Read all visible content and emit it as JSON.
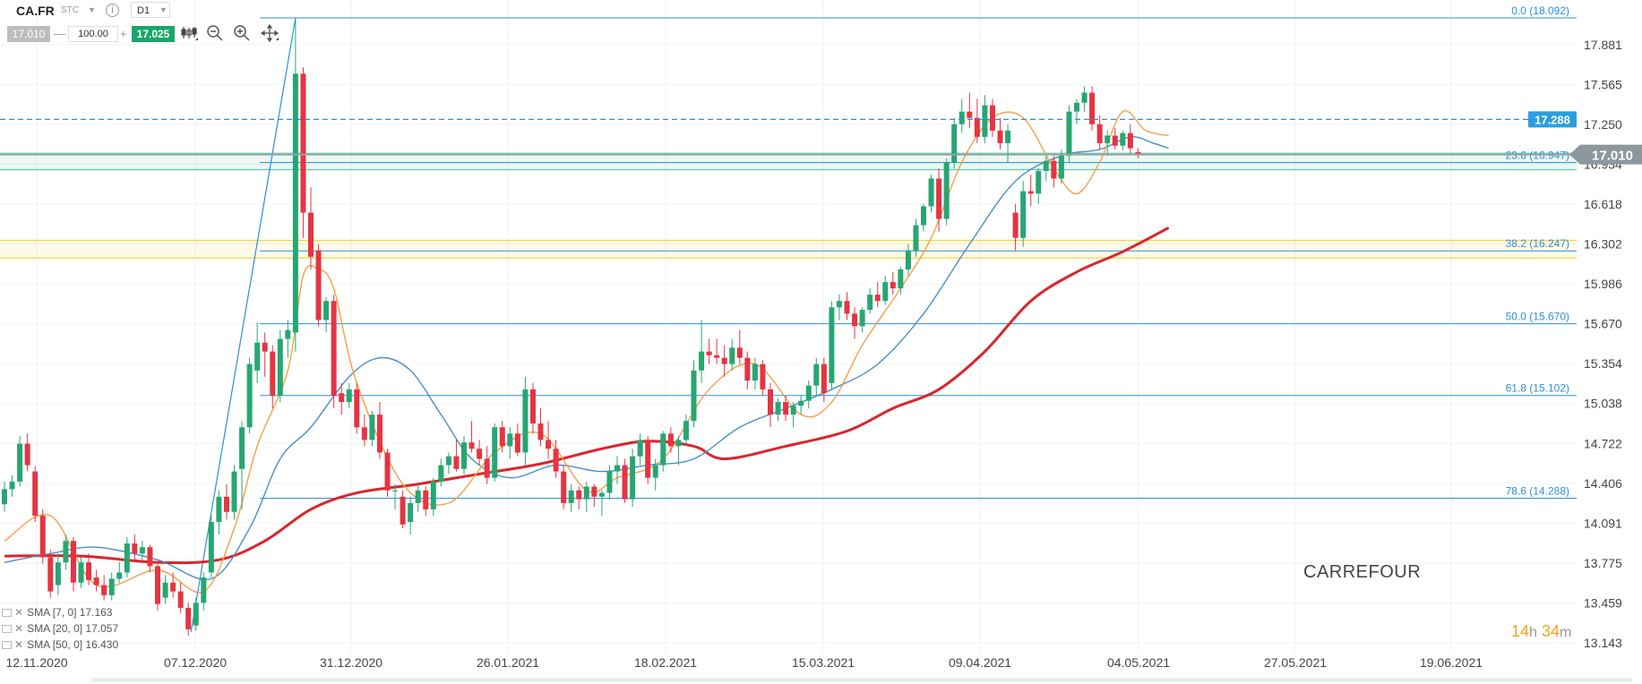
{
  "toolbar": {
    "symbol": "CA.FR",
    "market": "STC",
    "info_glyph": "i",
    "timeframe": "D1",
    "bid": "17.010",
    "minus": "—",
    "volume": "100.00",
    "plus": "+",
    "ask": "17.025",
    "icons": [
      "candlestick-type-icon",
      "zoom-out-icon",
      "zoom-in-icon",
      "crosshair-icon"
    ]
  },
  "indicators": [
    {
      "label": "SMA [7, 0] 17.163",
      "color": "#f5a04a"
    },
    {
      "label": "SMA [20, 0] 17.057",
      "color": "#4a8fc7"
    },
    {
      "label": "SMA [50, 0] 16.430",
      "color": "#d9262b"
    }
  ],
  "instrument_label": "CARREFOUR",
  "countdown": {
    "hours": "14",
    "h_unit": "h",
    "minutes": "34",
    "m_unit": "m"
  },
  "chart_data": {
    "type": "candlestick",
    "ylim": [
      13.0,
      18.16
    ],
    "y_ticks": [
      "17.881",
      "17.565",
      "17.250",
      "16.934",
      "16.618",
      "16.302",
      "15.986",
      "15.670",
      "15.354",
      "15.038",
      "14.722",
      "14.406",
      "14.091",
      "13.775",
      "13.459",
      "13.143"
    ],
    "x_ticks": [
      "12.11.2020",
      "07.12.2020",
      "31.12.2020",
      "26.01.2021",
      "18.02.2021",
      "15.03.2021",
      "09.04.2021",
      "04.05.2021",
      "27.05.2021",
      "19.06.2021"
    ],
    "current_price": "17.010",
    "dashed_level": "17.288",
    "fibonacci": [
      {
        "label": "0.0 (18.092)",
        "value": 18.092
      },
      {
        "label": "23.6 (16.947)",
        "value": 16.947
      },
      {
        "label": "38.2 (16.247)",
        "value": 16.247
      },
      {
        "label": "50.0 (15.670)",
        "value": 15.67
      },
      {
        "label": "61.8 (15.102)",
        "value": 15.102
      },
      {
        "label": "78.6 (14.288)",
        "value": 14.288
      }
    ],
    "fib_anchor": {
      "low": 13.23,
      "high": 18.092
    },
    "zones": [
      {
        "from": 16.89,
        "to": 17.02,
        "color": "#5fc9a8"
      },
      {
        "from": 16.19,
        "to": 16.33,
        "color": "#f3d64a"
      }
    ],
    "candles": [
      [
        14.24,
        14.42,
        14.18,
        14.36
      ],
      [
        14.36,
        14.47,
        14.3,
        14.42
      ],
      [
        14.42,
        14.78,
        14.38,
        14.72
      ],
      [
        14.72,
        14.8,
        14.5,
        14.55
      ],
      [
        14.5,
        14.54,
        14.1,
        14.15
      ],
      [
        14.15,
        14.2,
        13.77,
        13.82
      ],
      [
        13.82,
        13.88,
        13.5,
        13.55
      ],
      [
        13.6,
        13.85,
        13.52,
        13.78
      ],
      [
        13.78,
        14.0,
        13.72,
        13.95
      ],
      [
        13.95,
        13.98,
        13.55,
        13.62
      ],
      [
        13.62,
        13.82,
        13.58,
        13.78
      ],
      [
        13.78,
        13.85,
        13.6,
        13.64
      ],
      [
        13.66,
        13.72,
        13.55,
        13.6
      ],
      [
        13.6,
        13.68,
        13.48,
        13.52
      ],
      [
        13.52,
        13.7,
        13.48,
        13.65
      ],
      [
        13.65,
        13.78,
        13.62,
        13.7
      ],
      [
        13.7,
        13.98,
        13.66,
        13.93
      ],
      [
        13.93,
        14.0,
        13.8,
        13.85
      ],
      [
        13.85,
        13.95,
        13.8,
        13.9
      ],
      [
        13.9,
        13.92,
        13.7,
        13.75
      ],
      [
        13.75,
        13.78,
        13.4,
        13.45
      ],
      [
        13.5,
        13.68,
        13.45,
        13.62
      ],
      [
        13.62,
        13.7,
        13.5,
        13.55
      ],
      [
        13.55,
        13.62,
        13.38,
        13.42
      ],
      [
        13.42,
        13.46,
        13.2,
        13.25
      ],
      [
        13.28,
        13.5,
        13.24,
        13.46
      ],
      [
        13.46,
        13.7,
        13.4,
        13.66
      ],
      [
        13.7,
        14.15,
        13.66,
        14.1
      ],
      [
        14.1,
        14.35,
        14.0,
        14.3
      ],
      [
        14.3,
        14.4,
        14.12,
        14.18
      ],
      [
        14.18,
        14.55,
        14.12,
        14.5
      ],
      [
        14.52,
        14.9,
        14.2,
        14.85
      ],
      [
        14.85,
        15.4,
        14.8,
        15.35
      ],
      [
        15.3,
        15.68,
        15.2,
        15.52
      ],
      [
        15.52,
        15.6,
        15.25,
        15.45
      ],
      [
        15.45,
        15.5,
        15.0,
        15.1
      ],
      [
        15.1,
        15.62,
        15.05,
        15.55
      ],
      [
        15.55,
        15.7,
        15.4,
        15.62
      ],
      [
        15.6,
        18.092,
        15.45,
        17.65
      ],
      [
        17.65,
        17.7,
        16.35,
        16.55
      ],
      [
        16.55,
        16.75,
        16.1,
        16.2
      ],
      [
        16.25,
        16.3,
        15.65,
        15.7
      ],
      [
        15.7,
        15.88,
        15.6,
        15.85
      ],
      [
        15.85,
        15.9,
        15.0,
        15.1
      ],
      [
        15.12,
        15.2,
        14.95,
        15.05
      ],
      [
        15.05,
        15.2,
        15.0,
        15.15
      ],
      [
        15.15,
        15.2,
        14.8,
        14.85
      ],
      [
        14.85,
        14.95,
        14.7,
        14.75
      ],
      [
        14.75,
        14.98,
        14.7,
        14.95
      ],
      [
        14.95,
        15.05,
        14.6,
        14.65
      ],
      [
        14.65,
        14.68,
        14.3,
        14.35
      ],
      [
        14.35,
        14.4,
        14.2,
        14.35
      ],
      [
        14.3,
        14.35,
        14.05,
        14.08
      ],
      [
        14.1,
        14.3,
        14.0,
        14.25
      ],
      [
        14.25,
        14.4,
        14.18,
        14.35
      ],
      [
        14.35,
        14.38,
        14.15,
        14.2
      ],
      [
        14.2,
        14.45,
        14.15,
        14.42
      ],
      [
        14.42,
        14.6,
        14.38,
        14.55
      ],
      [
        14.55,
        14.65,
        14.48,
        14.62
      ],
      [
        14.62,
        14.75,
        14.5,
        14.52
      ],
      [
        14.52,
        14.78,
        14.48,
        14.73
      ],
      [
        14.73,
        14.9,
        14.65,
        14.68
      ],
      [
        14.68,
        14.75,
        14.55,
        14.6
      ],
      [
        14.6,
        14.7,
        14.4,
        14.45
      ],
      [
        14.45,
        14.88,
        14.42,
        14.85
      ],
      [
        14.85,
        14.9,
        14.65,
        14.7
      ],
      [
        14.7,
        14.85,
        14.6,
        14.8
      ],
      [
        14.8,
        14.88,
        14.62,
        14.65
      ],
      [
        14.65,
        15.25,
        14.55,
        15.15
      ],
      [
        15.15,
        15.2,
        14.8,
        14.88
      ],
      [
        14.88,
        15.0,
        14.7,
        14.75
      ],
      [
        14.75,
        14.9,
        14.6,
        14.68
      ],
      [
        14.68,
        14.75,
        14.45,
        14.5
      ],
      [
        14.5,
        14.55,
        14.2,
        14.25
      ],
      [
        14.25,
        14.4,
        14.18,
        14.35
      ],
      [
        14.35,
        14.38,
        14.2,
        14.28
      ],
      [
        14.28,
        14.42,
        14.18,
        14.38
      ],
      [
        14.38,
        14.4,
        14.22,
        14.3
      ],
      [
        14.3,
        14.35,
        14.15,
        14.33
      ],
      [
        14.33,
        14.55,
        14.28,
        14.5
      ],
      [
        14.5,
        14.62,
        14.4,
        14.55
      ],
      [
        14.55,
        14.6,
        14.25,
        14.28
      ],
      [
        14.28,
        14.68,
        14.22,
        14.62
      ],
      [
        14.62,
        14.8,
        14.55,
        14.75
      ],
      [
        14.75,
        14.78,
        14.4,
        14.45
      ],
      [
        14.45,
        14.6,
        14.35,
        14.55
      ],
      [
        14.55,
        14.82,
        14.5,
        14.8
      ],
      [
        14.8,
        14.85,
        14.65,
        14.7
      ],
      [
        14.7,
        14.78,
        14.55,
        14.75
      ],
      [
        14.75,
        14.95,
        14.7,
        14.9
      ],
      [
        14.9,
        15.38,
        14.85,
        15.3
      ],
      [
        15.3,
        15.7,
        15.2,
        15.45
      ],
      [
        15.45,
        15.55,
        15.35,
        15.42
      ],
      [
        15.42,
        15.55,
        15.35,
        15.4
      ],
      [
        15.4,
        15.5,
        15.25,
        15.35
      ],
      [
        15.35,
        15.55,
        15.3,
        15.48
      ],
      [
        15.48,
        15.62,
        15.35,
        15.4
      ],
      [
        15.4,
        15.45,
        15.15,
        15.22
      ],
      [
        15.22,
        15.4,
        15.15,
        15.35
      ],
      [
        15.35,
        15.38,
        15.1,
        15.15
      ],
      [
        15.15,
        15.2,
        14.85,
        14.95
      ],
      [
        14.95,
        15.08,
        14.9,
        15.05
      ],
      [
        15.05,
        15.1,
        14.9,
        14.95
      ],
      [
        14.95,
        15.05,
        14.85,
        15.02
      ],
      [
        15.02,
        15.1,
        14.95,
        15.06
      ],
      [
        15.06,
        15.22,
        15.0,
        15.18
      ],
      [
        15.18,
        15.4,
        15.1,
        15.35
      ],
      [
        15.35,
        15.4,
        15.05,
        15.12
      ],
      [
        15.2,
        15.85,
        15.15,
        15.8
      ],
      [
        15.8,
        15.9,
        15.7,
        15.85
      ],
      [
        15.85,
        15.92,
        15.7,
        15.75
      ],
      [
        15.75,
        15.8,
        15.55,
        15.65
      ],
      [
        15.65,
        15.8,
        15.6,
        15.78
      ],
      [
        15.78,
        15.95,
        15.75,
        15.9
      ],
      [
        15.9,
        16.0,
        15.8,
        15.85
      ],
      [
        15.85,
        16.05,
        15.82,
        16.0
      ],
      [
        16.0,
        16.08,
        15.9,
        15.95
      ],
      [
        15.95,
        16.12,
        15.9,
        16.1
      ],
      [
        16.1,
        16.3,
        16.05,
        16.25
      ],
      [
        16.25,
        16.5,
        16.2,
        16.45
      ],
      [
        16.45,
        16.62,
        16.4,
        16.6
      ],
      [
        16.6,
        16.85,
        16.55,
        16.82
      ],
      [
        16.82,
        16.9,
        16.4,
        16.5
      ],
      [
        16.5,
        16.98,
        16.45,
        16.95
      ],
      [
        16.95,
        17.3,
        16.9,
        17.25
      ],
      [
        17.25,
        17.45,
        17.18,
        17.35
      ],
      [
        17.35,
        17.5,
        17.22,
        17.3
      ],
      [
        17.3,
        17.45,
        17.1,
        17.15
      ],
      [
        17.15,
        17.48,
        17.1,
        17.4
      ],
      [
        17.4,
        17.45,
        17.15,
        17.2
      ],
      [
        17.2,
        17.3,
        17.05,
        17.1
      ],
      [
        17.1,
        17.25,
        16.95,
        17.2
      ],
      [
        16.55,
        16.62,
        16.25,
        16.35
      ],
      [
        16.35,
        16.8,
        16.28,
        16.72
      ],
      [
        16.72,
        16.85,
        16.6,
        16.7
      ],
      [
        16.7,
        16.9,
        16.62,
        16.88
      ],
      [
        16.88,
        17.0,
        16.8,
        16.96
      ],
      [
        16.96,
        17.0,
        16.75,
        16.82
      ],
      [
        16.82,
        17.05,
        16.78,
        17.0
      ],
      [
        17.0,
        17.4,
        16.95,
        17.35
      ],
      [
        17.35,
        17.45,
        17.25,
        17.42
      ],
      [
        17.42,
        17.55,
        17.35,
        17.5
      ],
      [
        17.5,
        17.55,
        17.2,
        17.25
      ],
      [
        17.25,
        17.32,
        17.05,
        17.1
      ],
      [
        17.1,
        17.2,
        17.0,
        17.16
      ],
      [
        17.16,
        17.22,
        17.05,
        17.08
      ],
      [
        17.08,
        17.2,
        17.04,
        17.18
      ],
      [
        17.18,
        17.25,
        17.02,
        17.06
      ],
      [
        17.03,
        17.06,
        16.98,
        17.01
      ]
    ],
    "sma7_anchors": [
      [
        0,
        13.95
      ],
      [
        6,
        14.15
      ],
      [
        12,
        13.6
      ],
      [
        20,
        13.72
      ],
      [
        26,
        13.55
      ],
      [
        30,
        14.05
      ],
      [
        33,
        14.7
      ],
      [
        37,
        15.3
      ],
      [
        39,
        16.05
      ],
      [
        41,
        16.1
      ],
      [
        43,
        15.95
      ],
      [
        46,
        15.2
      ],
      [
        52,
        14.4
      ],
      [
        58,
        14.25
      ],
      [
        64,
        14.65
      ],
      [
        70,
        14.8
      ],
      [
        76,
        14.35
      ],
      [
        80,
        14.45
      ],
      [
        86,
        14.6
      ],
      [
        92,
        15.15
      ],
      [
        98,
        15.35
      ],
      [
        104,
        14.95
      ],
      [
        108,
        15.05
      ],
      [
        112,
        15.5
      ],
      [
        117,
        15.95
      ],
      [
        121,
        16.35
      ],
      [
        125,
        16.95
      ],
      [
        129,
        17.3
      ],
      [
        133,
        17.3
      ],
      [
        137,
        16.9
      ],
      [
        140,
        16.7
      ],
      [
        143,
        16.95
      ],
      [
        146,
        17.35
      ],
      [
        149,
        17.2
      ],
      [
        152,
        17.16
      ]
    ],
    "sma20_anchors": [
      [
        0,
        13.78
      ],
      [
        6,
        13.85
      ],
      [
        12,
        13.9
      ],
      [
        20,
        13.8
      ],
      [
        27,
        13.65
      ],
      [
        32,
        14.05
      ],
      [
        36,
        14.6
      ],
      [
        40,
        14.85
      ],
      [
        45,
        15.25
      ],
      [
        49,
        15.4
      ],
      [
        53,
        15.3
      ],
      [
        57,
        14.95
      ],
      [
        61,
        14.6
      ],
      [
        66,
        14.45
      ],
      [
        72,
        14.55
      ],
      [
        78,
        14.5
      ],
      [
        84,
        14.55
      ],
      [
        90,
        14.6
      ],
      [
        96,
        14.85
      ],
      [
        102,
        15.0
      ],
      [
        108,
        15.15
      ],
      [
        114,
        15.35
      ],
      [
        120,
        15.75
      ],
      [
        126,
        16.3
      ],
      [
        132,
        16.8
      ],
      [
        138,
        17.0
      ],
      [
        143,
        17.05
      ],
      [
        147,
        17.15
      ],
      [
        150,
        17.1
      ],
      [
        152,
        17.06
      ]
    ],
    "sma50_anchors": [
      [
        0,
        13.83
      ],
      [
        10,
        13.83
      ],
      [
        20,
        13.78
      ],
      [
        28,
        13.8
      ],
      [
        34,
        13.95
      ],
      [
        40,
        14.2
      ],
      [
        46,
        14.33
      ],
      [
        54,
        14.4
      ],
      [
        62,
        14.48
      ],
      [
        70,
        14.56
      ],
      [
        78,
        14.68
      ],
      [
        84,
        14.74
      ],
      [
        90,
        14.7
      ],
      [
        94,
        14.6
      ],
      [
        102,
        14.7
      ],
      [
        110,
        14.82
      ],
      [
        116,
        15.0
      ],
      [
        122,
        15.15
      ],
      [
        128,
        15.45
      ],
      [
        134,
        15.85
      ],
      [
        140,
        16.08
      ],
      [
        146,
        16.24
      ],
      [
        152,
        16.43
      ]
    ]
  }
}
